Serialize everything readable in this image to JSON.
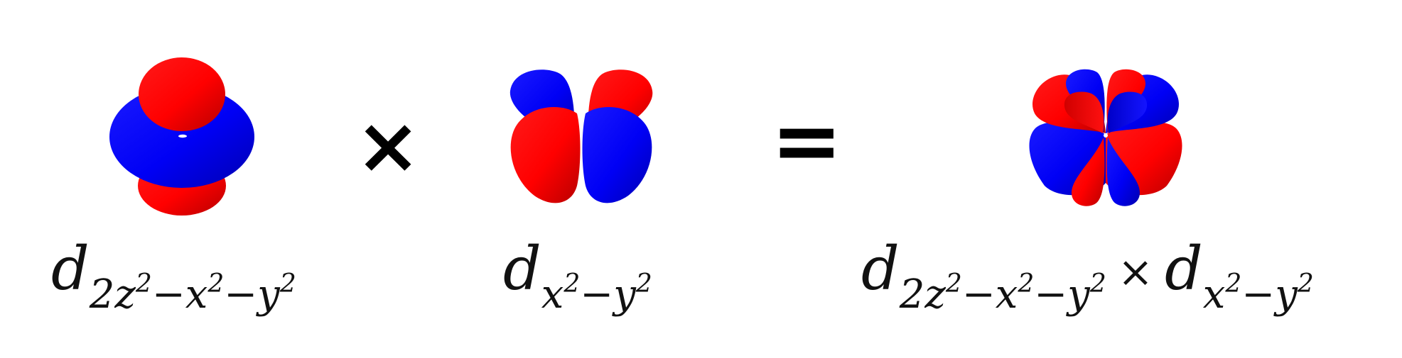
{
  "colors": {
    "positive_lobe": "#ff0000",
    "negative_lobe": "#0000ff",
    "background": "#ffffff"
  },
  "operators": {
    "times": "×",
    "equals": "="
  },
  "labels": {
    "orbital_1": {
      "base": "d",
      "sub_parts": [
        "2z",
        "2",
        "−x",
        "2",
        "−y",
        "2"
      ]
    },
    "orbital_2": {
      "base": "d",
      "sub_parts": [
        "x",
        "2",
        "−y",
        "2"
      ]
    },
    "product_times": "×"
  }
}
